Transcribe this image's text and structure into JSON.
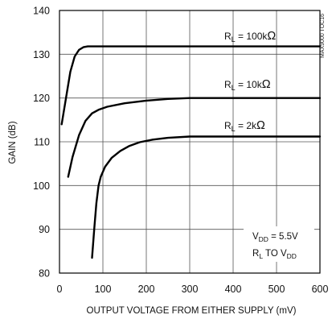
{
  "chart_data": {
    "type": "line",
    "title": "",
    "xlabel": "OUTPUT VOLTAGE FROM EITHER SUPPLY (mV)",
    "ylabel": "GAIN (dB)",
    "xlim": [
      0,
      600
    ],
    "ylim": [
      80,
      140
    ],
    "x_ticks": [
      "0",
      "100",
      "200",
      "300",
      "400",
      "500",
      "600"
    ],
    "y_ticks": [
      "80",
      "90",
      "100",
      "110",
      "120",
      "130",
      "140"
    ],
    "grid": true,
    "series": [
      {
        "name": "R_L = 100kΩ",
        "label": {
          "main": "R",
          "sub": "L",
          "rest": " = 100k",
          "sym": "Ω"
        },
        "points": [
          [
            5,
            114
          ],
          [
            15,
            120
          ],
          [
            25,
            126
          ],
          [
            35,
            129.5
          ],
          [
            45,
            131
          ],
          [
            55,
            131.6
          ],
          [
            65,
            131.8
          ],
          [
            80,
            131.8
          ],
          [
            200,
            131.8
          ],
          [
            400,
            131.8
          ],
          [
            600,
            131.8
          ]
        ]
      },
      {
        "name": "R_L = 10kΩ",
        "label": {
          "main": "R",
          "sub": "L",
          "rest": " = 10k",
          "sym": "Ω"
        },
        "points": [
          [
            20,
            102
          ],
          [
            30,
            106.5
          ],
          [
            45,
            111.5
          ],
          [
            60,
            114.8
          ],
          [
            75,
            116.5
          ],
          [
            90,
            117.3
          ],
          [
            110,
            118
          ],
          [
            150,
            118.8
          ],
          [
            200,
            119.4
          ],
          [
            250,
            119.8
          ],
          [
            300,
            120
          ],
          [
            600,
            120
          ]
        ]
      },
      {
        "name": "R_L = 2kΩ",
        "label": {
          "main": "R",
          "sub": "L",
          "rest": " = 2k",
          "sym": "Ω"
        },
        "points": [
          [
            75,
            83.5
          ],
          [
            80,
            90
          ],
          [
            85,
            96
          ],
          [
            90,
            100
          ],
          [
            95,
            102
          ],
          [
            105,
            104.3
          ],
          [
            120,
            106.3
          ],
          [
            140,
            107.9
          ],
          [
            160,
            109
          ],
          [
            185,
            109.9
          ],
          [
            215,
            110.5
          ],
          [
            250,
            110.9
          ],
          [
            300,
            111.2
          ],
          [
            600,
            111.2
          ]
        ]
      }
    ],
    "annotation": {
      "line1": {
        "main": "V",
        "sub": "DD",
        "rest": " = 5.5V"
      },
      "line2": {
        "main": "R",
        "sub": "L",
        "rest": " TO V",
        "sub2": "DD"
      }
    },
    "stamp": "MAX9000 TOC16"
  },
  "colors": {
    "curve": "#000000",
    "grid": "#555555",
    "frame": "#000000"
  }
}
